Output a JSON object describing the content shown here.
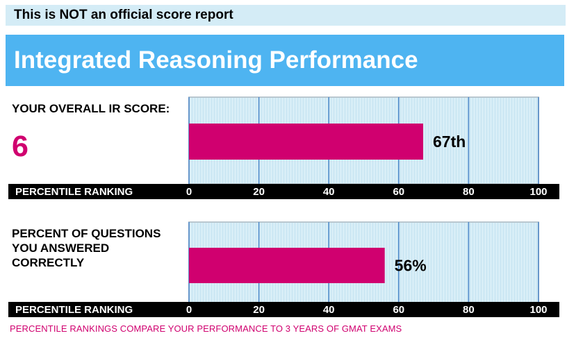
{
  "notice": "This is NOT an official score report",
  "banner_title": "Integrated Reasoning Performance",
  "section1": {
    "label": "YOUR OVERALL IR SCORE:",
    "score": "6"
  },
  "section2": {
    "label_lines": [
      "PERCENT OF QUESTIONS",
      "YOU ANSWERED",
      "CORRECTLY"
    ]
  },
  "footer": "PERCENTILE RANKINGS COMPARE YOUR PERFORMANCE TO 3 YEARS OF GMAT EXAMS",
  "colors": {
    "bar": "#d0006f",
    "plot_bg": "#d8eef7",
    "grid": "#4a86c8",
    "axis_band": "#000000",
    "banner": "#4eb4f1"
  },
  "chart_data": [
    {
      "type": "bar",
      "orientation": "horizontal",
      "value": 67,
      "value_label": "67th",
      "xlabel": "PERCENTILE RANKING",
      "xticks": [
        0,
        20,
        40,
        60,
        80,
        100
      ],
      "xlim": [
        0,
        100
      ],
      "grid": true
    },
    {
      "type": "bar",
      "orientation": "horizontal",
      "value": 56,
      "value_label": "56%",
      "xlabel": "PERCENTILE RANKING",
      "xticks": [
        0,
        20,
        40,
        60,
        80,
        100
      ],
      "xlim": [
        0,
        100
      ],
      "grid": true
    }
  ]
}
